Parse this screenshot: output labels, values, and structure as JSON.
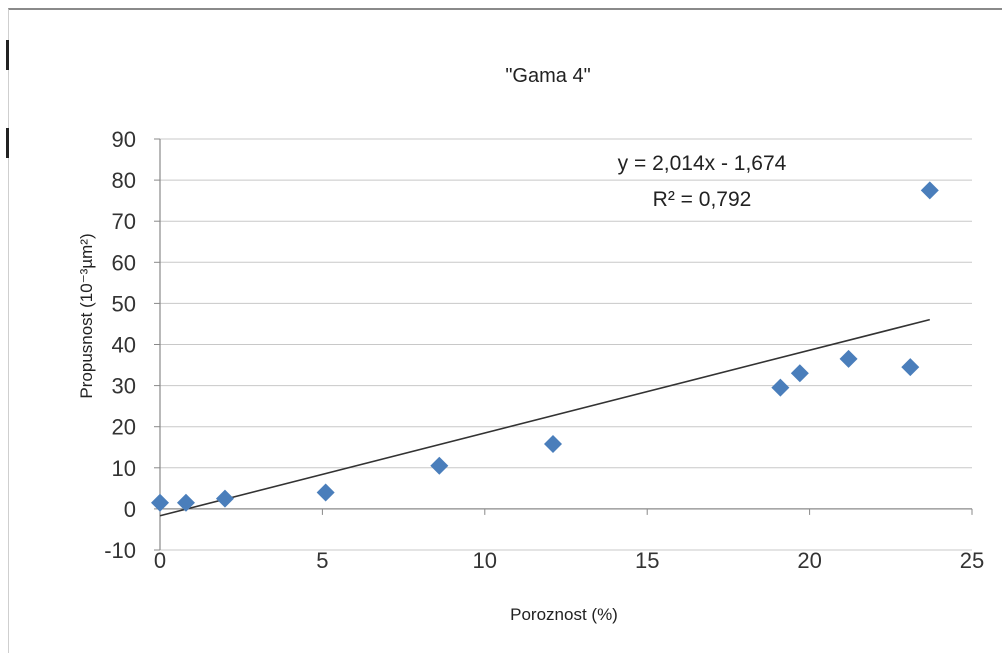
{
  "chart_data": {
    "type": "scatter",
    "title": "\"Gama 4\"",
    "xlabel": "Poroznost (%)",
    "ylabel": "Propusnost (10⁻³µm²)",
    "xlim": [
      0,
      25
    ],
    "ylim": [
      -10,
      90
    ],
    "xticks": [
      "0",
      "5",
      "10",
      "15",
      "20",
      "25"
    ],
    "yticks": [
      "-10",
      "0",
      "10",
      "20",
      "30",
      "40",
      "50",
      "60",
      "70",
      "80",
      "90"
    ],
    "grid": "horizontal",
    "marker_color": "#4a7ebb",
    "trendline_color": "#333333",
    "points": [
      {
        "x": 0.0,
        "y": 1.5
      },
      {
        "x": 0.8,
        "y": 1.5
      },
      {
        "x": 2.0,
        "y": 2.5
      },
      {
        "x": 5.1,
        "y": 4.0
      },
      {
        "x": 8.6,
        "y": 10.5
      },
      {
        "x": 12.1,
        "y": 15.8
      },
      {
        "x": 19.1,
        "y": 29.5
      },
      {
        "x": 19.7,
        "y": 33.0
      },
      {
        "x": 21.2,
        "y": 36.5
      },
      {
        "x": 23.1,
        "y": 34.5
      },
      {
        "x": 23.7,
        "y": 77.5
      }
    ],
    "trendline": {
      "slope": 2.014,
      "intercept": -1.674,
      "x_range": [
        0,
        23.7
      ],
      "equation": "y = 2,014x - 1,674",
      "r2_label": "R² = 0,792"
    }
  }
}
